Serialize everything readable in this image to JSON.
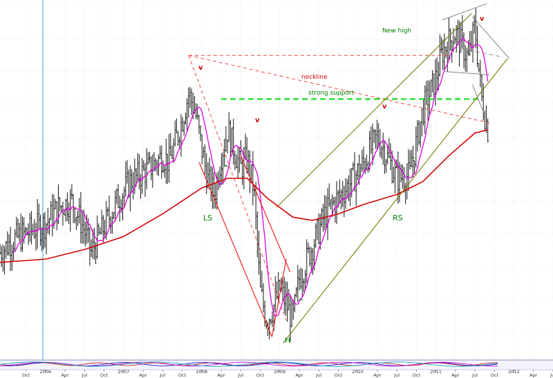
{
  "chart_data": {
    "type": "bar",
    "subtype": "weekly price bars (OHLC) with moving averages and technical annotations",
    "grid": true,
    "grid_style": "dotted light gray",
    "x_range": [
      "2005-06",
      "2012-07"
    ],
    "months": [
      {
        "label": "Oct",
        "date": "2005-10"
      },
      {
        "label": "2006",
        "date": "2006-01",
        "year": true
      },
      {
        "label": "Apr",
        "date": "2006-04"
      },
      {
        "label": "Jul",
        "date": "2006-07"
      },
      {
        "label": "Oct",
        "date": "2006-10"
      },
      {
        "label": "2007",
        "date": "2007-01",
        "year": true
      },
      {
        "label": "Apr",
        "date": "2007-04"
      },
      {
        "label": "Jul",
        "date": "2007-07"
      },
      {
        "label": "Oct",
        "date": "2007-10"
      },
      {
        "label": "2008",
        "date": "2008-01",
        "year": true
      },
      {
        "label": "Apr",
        "date": "2008-04"
      },
      {
        "label": "Jul",
        "date": "2008-07"
      },
      {
        "label": "Oct",
        "date": "2008-10"
      },
      {
        "label": "2009",
        "date": "2009-01",
        "year": true
      },
      {
        "label": "Apr",
        "date": "2009-04"
      },
      {
        "label": "Jul",
        "date": "2009-07"
      },
      {
        "label": "Oct",
        "date": "2009-10"
      },
      {
        "label": "2010",
        "date": "2010-01",
        "year": true
      },
      {
        "label": "Apr",
        "date": "2010-04"
      },
      {
        "label": "Jul",
        "date": "2010-07"
      },
      {
        "label": "Oct",
        "date": "2010-10"
      },
      {
        "label": "2011",
        "date": "2011-01",
        "year": true
      },
      {
        "label": "Apr",
        "date": "2011-04"
      },
      {
        "label": "Jul",
        "date": "2011-07"
      },
      {
        "label": "Oct",
        "date": "2011-10"
      },
      {
        "label": "2012",
        "date": "2012-01",
        "year": true
      },
      {
        "label": "Apr",
        "date": "2012-04"
      },
      {
        "label": "Jul",
        "date": "2012-07"
      }
    ],
    "price_path": [
      [
        "2005-06",
        24
      ],
      [
        "2005-08",
        28
      ],
      [
        "2005-10",
        30
      ],
      [
        "2006-01",
        33
      ],
      [
        "2006-03",
        38
      ],
      [
        "2006-05",
        40
      ],
      [
        "2006-07",
        31
      ],
      [
        "2006-08",
        24
      ],
      [
        "2006-10",
        32
      ],
      [
        "2006-12",
        40
      ],
      [
        "2007-02",
        46
      ],
      [
        "2007-05",
        50
      ],
      [
        "2007-07",
        54
      ],
      [
        "2007-08",
        52
      ],
      [
        "2007-10",
        65
      ],
      [
        "2007-11",
        73
      ],
      [
        "2007-12",
        68
      ],
      [
        "2008-01",
        56
      ],
      [
        "2008-02",
        46
      ],
      [
        "2008-03",
        42
      ],
      [
        "2008-04",
        54
      ],
      [
        "2008-05",
        62
      ],
      [
        "2008-06",
        56
      ],
      [
        "2008-07",
        50
      ],
      [
        "2008-08",
        53
      ],
      [
        "2008-09",
        44
      ],
      [
        "2008-10",
        12
      ],
      [
        "2008-11",
        3
      ],
      [
        "2008-12",
        7
      ],
      [
        "2009-01",
        13
      ],
      [
        "2009-02",
        8
      ],
      [
        "2009-03",
        3
      ],
      [
        "2009-04",
        16
      ],
      [
        "2009-06",
        26
      ],
      [
        "2009-08",
        36
      ],
      [
        "2009-10",
        41
      ],
      [
        "2009-12",
        46
      ],
      [
        "2010-02",
        52
      ],
      [
        "2010-04",
        60
      ],
      [
        "2010-05",
        56
      ],
      [
        "2010-07",
        47
      ],
      [
        "2010-09",
        48
      ],
      [
        "2010-11",
        68
      ],
      [
        "2011-01",
        78
      ],
      [
        "2011-02",
        86
      ],
      [
        "2011-04",
        92
      ],
      [
        "2011-05",
        88
      ],
      [
        "2011-06",
        84
      ],
      [
        "2011-07",
        94
      ],
      [
        "2011-08",
        72
      ],
      [
        "2011-09",
        62
      ]
    ],
    "moving_average_slow": [
      [
        "2005-06",
        21
      ],
      [
        "2006-01",
        22
      ],
      [
        "2006-07",
        25
      ],
      [
        "2007-01",
        29
      ],
      [
        "2007-07",
        36
      ],
      [
        "2008-01",
        44
      ],
      [
        "2008-05",
        47
      ],
      [
        "2008-08",
        47
      ],
      [
        "2008-11",
        41
      ],
      [
        "2009-03",
        35
      ],
      [
        "2009-06",
        34
      ],
      [
        "2009-10",
        36
      ],
      [
        "2010-02",
        39
      ],
      [
        "2010-07",
        42
      ],
      [
        "2010-11",
        46
      ],
      [
        "2011-03",
        54
      ],
      [
        "2011-07",
        61
      ],
      [
        "2011-09",
        62
      ]
    ],
    "colors": {
      "bars": "#111111",
      "ma_fast": "#e000e0",
      "ma_slow": "#d40000",
      "support": "#00dd00",
      "neckline": "#ee4444",
      "channel": "#7a7a00",
      "wedge": "#888888",
      "annotation_green": "#008000",
      "annotation_red": "#cc0000",
      "marker_vertical": "#3aa0c8"
    },
    "annotations": {
      "new_high": "New high",
      "neckline": "neckline",
      "strong_support": "strong support",
      "left_shoulder": "LS",
      "head": "H",
      "right_shoulder": "RS",
      "peak_marks": [
        "v",
        "v",
        "v",
        "v"
      ],
      "trough_marks": [
        "^",
        "^",
        "^",
        "^"
      ]
    }
  }
}
